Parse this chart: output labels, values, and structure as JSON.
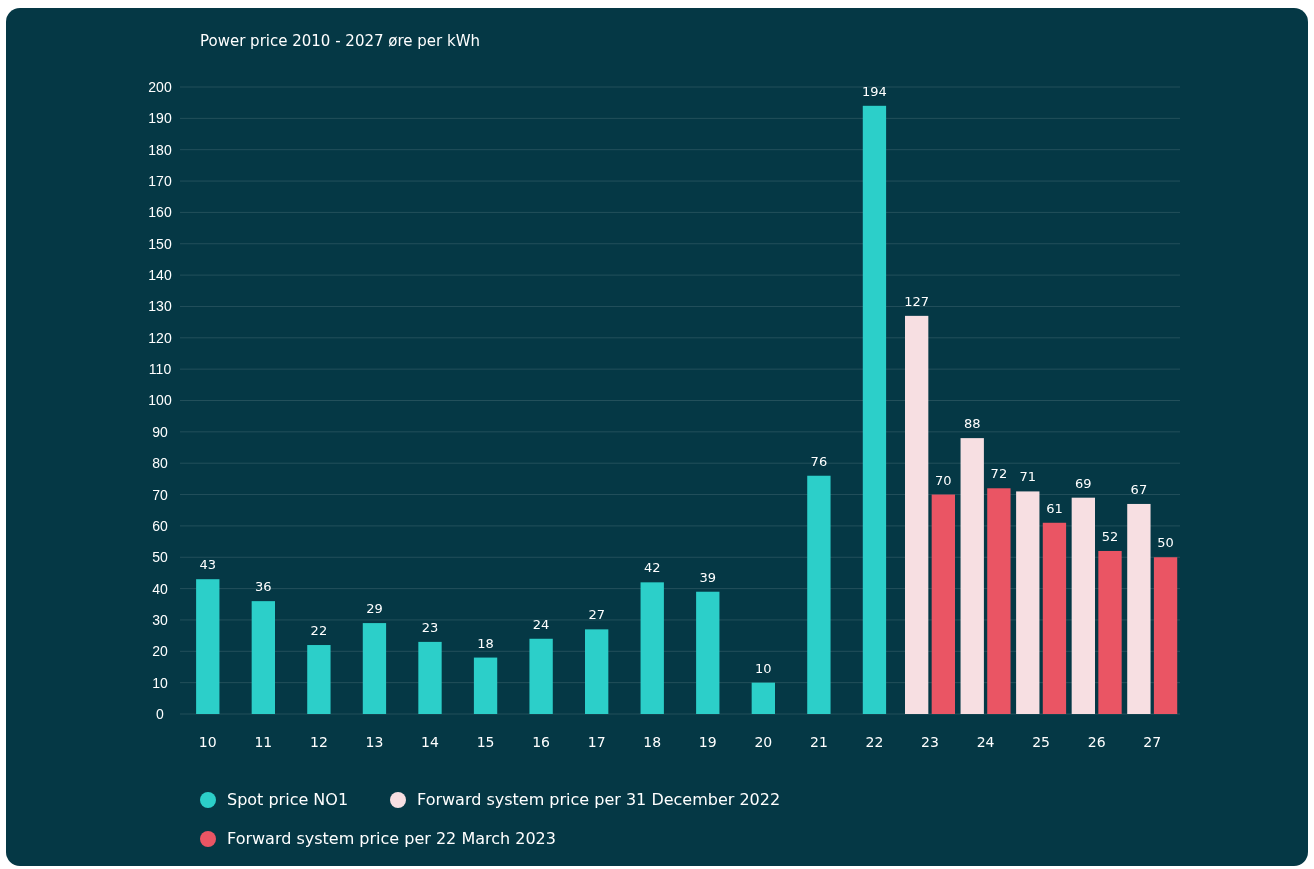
{
  "chart_data": {
    "type": "bar",
    "title": "Power price 2010 - 2027 øre per kWh",
    "categories": [
      "10",
      "11",
      "12",
      "13",
      "14",
      "15",
      "16",
      "17",
      "18",
      "19",
      "20",
      "21",
      "22",
      "23",
      "24",
      "25",
      "26",
      "27"
    ],
    "series": [
      {
        "name": "Spot price NO1",
        "color": "#2ccfc9",
        "values": [
          43,
          36,
          22,
          29,
          23,
          18,
          24,
          27,
          42,
          39,
          10,
          76,
          194,
          null,
          null,
          null,
          null,
          null
        ]
      },
      {
        "name": "Forward system price per 31 December 2022",
        "color": "#f7dfe2",
        "values": [
          null,
          null,
          null,
          null,
          null,
          null,
          null,
          null,
          null,
          null,
          null,
          null,
          null,
          127,
          88,
          71,
          69,
          67
        ]
      },
      {
        "name": "Forward system price per 22 March 2023",
        "color": "#ea5564",
        "values": [
          null,
          null,
          null,
          null,
          null,
          null,
          null,
          null,
          null,
          null,
          null,
          null,
          null,
          70,
          72,
          61,
          52,
          50
        ]
      }
    ],
    "ylim": [
      0,
      200
    ],
    "yticks": [
      0,
      10,
      20,
      30,
      40,
      50,
      60,
      70,
      80,
      90,
      100,
      110,
      120,
      130,
      140,
      150,
      160,
      170,
      180,
      190,
      200
    ],
    "grid": "y",
    "legend": "bottom",
    "data_labels": true
  }
}
